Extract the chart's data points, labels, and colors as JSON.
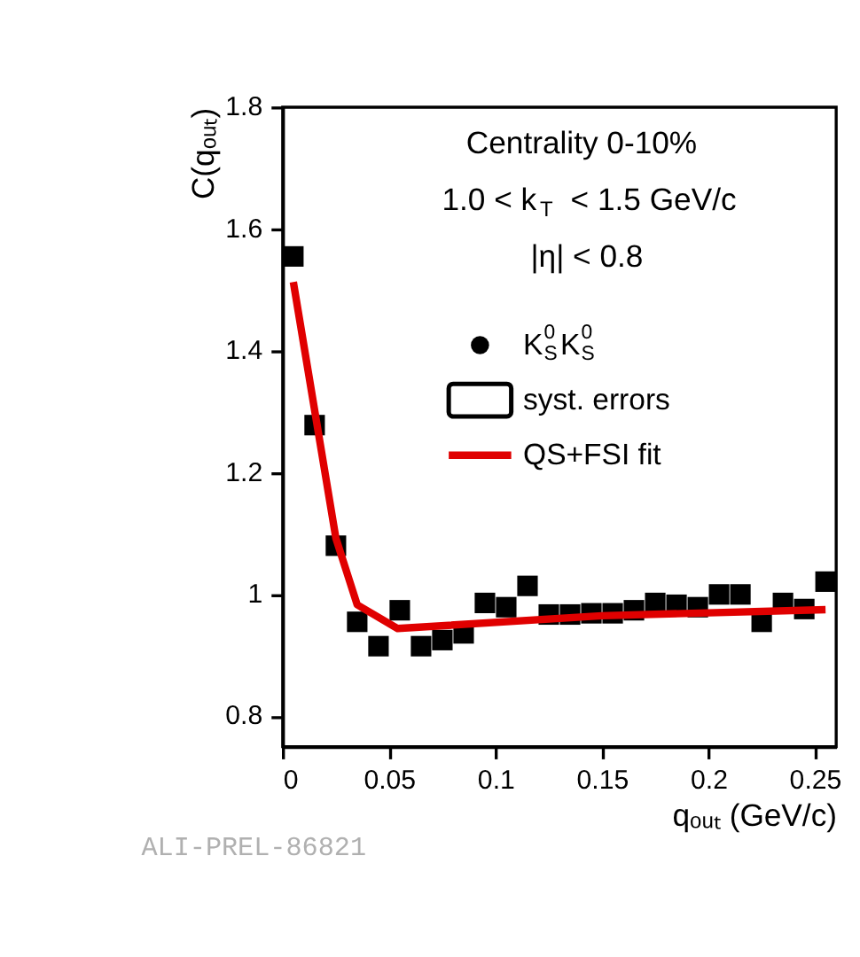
{
  "chart_data": {
    "type": "scatter",
    "xlabel": "qₒᵤₜ (GeV/c)",
    "ylabel": "C(qₒᵤₜ)",
    "annotations": [
      "Centrality 0-10%",
      "1.0 < k$_{T}$ < 1.5 GeV/c",
      "|η| < 0.8",
      "syst. errors",
      "ALI-PREL-86821"
    ],
    "xlim": [
      0,
      0.26
    ],
    "ylim": [
      0.75,
      1.8
    ],
    "xticks": [
      {
        "value": 0,
        "label": "0"
      },
      0.05,
      {
        "value": 0.1,
        "label": "0.1"
      },
      0.15,
      {
        "value": 0.2,
        "label": "0.2"
      },
      0.25
    ],
    "yticks": [
      0.8,
      {
        "value": 1,
        "label": "1"
      },
      1.2,
      1.4,
      1.6,
      1.8
    ],
    "grid": false,
    "legend": "right",
    "series": [
      {
        "name": "K$_{S}$$^{0}$K$_{S}$$^{0}$",
        "color": "#000000",
        "marker": "square",
        "x": [
          0.005,
          0.015,
          0.025,
          0.035,
          0.045,
          0.055,
          0.065,
          0.075,
          0.085,
          0.095,
          0.105,
          0.115,
          0.125,
          0.135,
          0.145,
          0.155,
          0.165,
          0.175,
          0.185,
          0.195,
          0.205,
          0.215,
          0.225,
          0.235,
          0.245,
          0.255
        ],
        "values": [
          1.555,
          1.278,
          1.08,
          0.955,
          0.915,
          0.974,
          0.915,
          0.925,
          0.936,
          0.986,
          0.979,
          1.014,
          0.967,
          0.967,
          0.969,
          0.969,
          0.974,
          0.986,
          0.983,
          0.979,
          1.0,
          1.0,
          0.955,
          0.986,
          0.976,
          1.021
        ]
      },
      {
        "name": "QS+FSI fit",
        "color": "#e00000",
        "type": "line",
        "line_style": "solid",
        "marker": "none",
        "x": [
          0.005,
          0.025,
          0.035,
          0.054,
          0.15,
          0.255
        ],
        "values": [
          1.513,
          1.092,
          0.983,
          0.944,
          0.965,
          0.975
        ]
      }
    ]
  }
}
